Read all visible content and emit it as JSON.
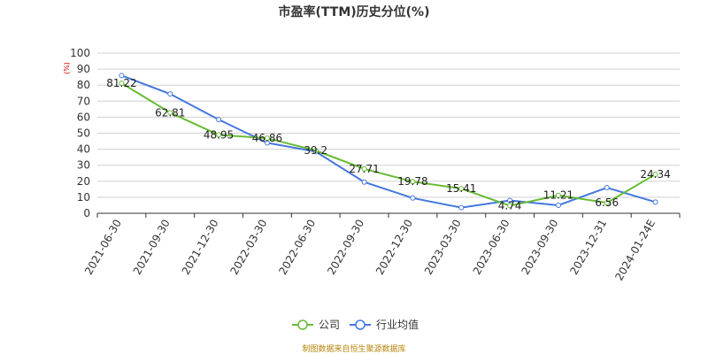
{
  "chart_data": {
    "type": "line",
    "title": "市盈率(TTM)历史分位(%)",
    "ylabel": "(%)",
    "xlabel": "",
    "ylim": [
      0,
      100
    ],
    "yticks": [
      0,
      10,
      20,
      30,
      40,
      50,
      60,
      70,
      80,
      90,
      100
    ],
    "grid": true,
    "legend_position": "bottom-center",
    "categories": [
      "2021-06-30",
      "2021-09-30",
      "2021-12-30",
      "2022-03-30",
      "2022-06-30",
      "2022-09-30",
      "2022-12-30",
      "2023-03-30",
      "2023-06-30",
      "2023-09-30",
      "2023-12-31",
      "2024-01-24E"
    ],
    "series": [
      {
        "name": "公司",
        "color": "#66bb33",
        "values": [
          81.22,
          62.81,
          48.95,
          46.86,
          39.2,
          27.71,
          19.78,
          15.41,
          4.74,
          11.21,
          6.56,
          24.34
        ],
        "labels": [
          "81.22",
          "62.81",
          "48.95",
          "46.86",
          "39.2",
          "27.71",
          "19.78",
          "15.41",
          "4.74",
          "11.21",
          "6.56",
          "24.34"
        ]
      },
      {
        "name": "行业均值",
        "color": "#4477dd",
        "values": [
          86,
          74.5,
          58.5,
          44,
          38.5,
          19.5,
          9.5,
          3.5,
          8,
          5,
          16,
          7
        ]
      }
    ]
  },
  "footer": {
    "source": "制图数据来自恒生聚源数据库"
  }
}
